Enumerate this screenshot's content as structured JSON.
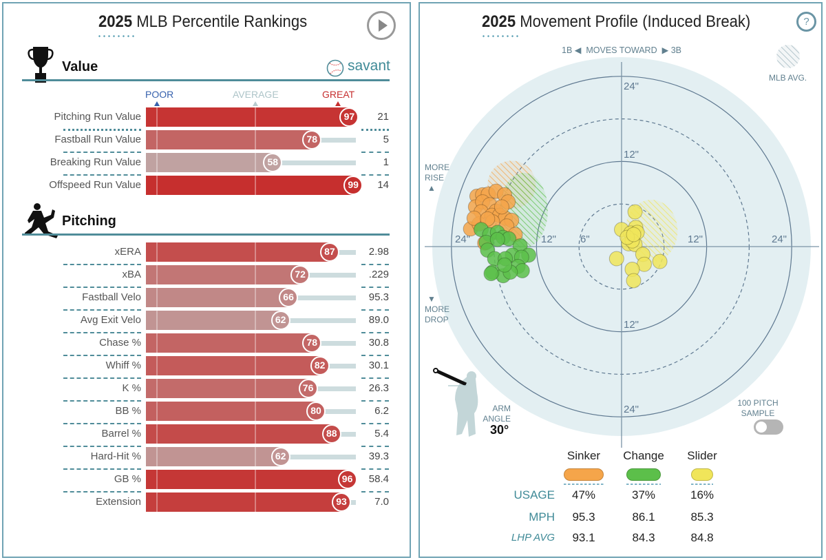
{
  "percentiles": {
    "title_year": "2025",
    "title_rest": "MLB Percentile Rankings",
    "play_icon": "play-circle-icon",
    "value_section": {
      "title": "Value",
      "icon": "trophy-icon"
    },
    "brand": {
      "label": "savant",
      "icon": "baseball-icon"
    },
    "scale_labels": {
      "poor": "POOR",
      "average": "AVERAGE",
      "great": "GREAT"
    },
    "colors": {
      "poor": "#3661ad",
      "average": "#bcc8c8",
      "great": "#c62f2f",
      "accent": "#4f8c99"
    },
    "value_rows": [
      {
        "label": "Pitching Run Value",
        "percentile": 97,
        "value": "21"
      },
      {
        "label": "Fastball Run Value",
        "percentile": 78,
        "value": "5"
      },
      {
        "label": "Breaking Run Value",
        "percentile": 58,
        "value": "1"
      },
      {
        "label": "Offspeed Run Value",
        "percentile": 99,
        "value": "14"
      }
    ],
    "pitching_section": {
      "title": "Pitching",
      "icon": "pitcher-icon"
    },
    "pitching_rows": [
      {
        "label": "xERA",
        "percentile": 87,
        "value": "2.98"
      },
      {
        "label": "xBA",
        "percentile": 72,
        "value": ".229"
      },
      {
        "label": "Fastball Velo",
        "percentile": 66,
        "value": "95.3"
      },
      {
        "label": "Avg Exit Velo",
        "percentile": 62,
        "value": "89.0"
      },
      {
        "label": "Chase %",
        "percentile": 78,
        "value": "30.8"
      },
      {
        "label": "Whiff %",
        "percentile": 82,
        "value": "30.1"
      },
      {
        "label": "K %",
        "percentile": 76,
        "value": "26.3"
      },
      {
        "label": "BB %",
        "percentile": 80,
        "value": "6.2"
      },
      {
        "label": "Barrel %",
        "percentile": 88,
        "value": "5.4"
      },
      {
        "label": "Hard-Hit %",
        "percentile": 62,
        "value": "39.3"
      },
      {
        "label": "GB %",
        "percentile": 96,
        "value": "58.4"
      },
      {
        "label": "Extension",
        "percentile": 93,
        "value": "7.0"
      }
    ]
  },
  "movement": {
    "title_year": "2025",
    "title_rest": "Movement Profile (Induced Break)",
    "help_icon": "question-circle-icon",
    "direction": {
      "left": "1B",
      "middle": "MOVES TOWARD",
      "right": "3B"
    },
    "mlb_avg_label": "MLB AVG.",
    "more_rise": [
      "MORE",
      "RISE"
    ],
    "more_drop": [
      "MORE",
      "DROP"
    ],
    "arm_angle": {
      "label1": "ARM",
      "label2": "ANGLE",
      "value": "30°"
    },
    "sample_toggle": {
      "label1": "100 PITCH",
      "label2": "SAMPLE",
      "on": false
    },
    "table": {
      "pitches": [
        {
          "name": "Sinker",
          "color": "#f5a54a",
          "usage": "47%",
          "mph": "95.3",
          "lhp_avg": "93.1"
        },
        {
          "name": "Change",
          "color": "#5cbf4a",
          "usage": "37%",
          "mph": "86.1",
          "lhp_avg": "84.3"
        },
        {
          "name": "Slider",
          "color": "#f0e55a",
          "usage": "16%",
          "mph": "85.3",
          "lhp_avg": "84.8"
        }
      ],
      "row_labels": {
        "usage": "USAGE",
        "mph": "MPH",
        "lhp_avg": "LHP AVG"
      }
    }
  },
  "chart_data": {
    "type": "scatter",
    "xlabel": "MOVES TOWARD",
    "units": "inches",
    "rings": [
      6,
      12,
      18,
      24
    ],
    "ring_labels": {
      "h_left": [
        "24\"",
        "12\"",
        "6\""
      ],
      "h_right": [
        "12\"",
        "24\""
      ],
      "v_top": [
        "24\"",
        "12\""
      ],
      "v_bottom": [
        "12\"",
        "24\""
      ]
    },
    "xlim": [
      -27,
      27
    ],
    "ylim": [
      -27,
      27
    ],
    "x_note": "negative = toward 1B (left), positive = toward 3B (right)",
    "series": [
      {
        "name": "Sinker",
        "color": "#f5a54a",
        "mlb_avg": {
          "x": -15.5,
          "y": 8.7,
          "rx": 3.4,
          "ry": 3.4
        },
        "points": [
          [
            -20.4,
            7.1
          ],
          [
            -19.6,
            7.3
          ],
          [
            -18.8,
            7.4
          ],
          [
            -17.7,
            7.8
          ],
          [
            -16.5,
            7.3
          ],
          [
            -16.0,
            6.3
          ],
          [
            -20.6,
            5.6
          ],
          [
            -19.6,
            6.3
          ],
          [
            -18.6,
            5.9
          ],
          [
            -17.7,
            5.0
          ],
          [
            -19.8,
            4.9
          ],
          [
            -18.3,
            4.4
          ],
          [
            -17.2,
            4.4
          ],
          [
            -16.4,
            4.0
          ],
          [
            -15.5,
            3.7
          ],
          [
            -21.3,
            2.5
          ],
          [
            -20.1,
            3.2
          ],
          [
            -18.2,
            3.5
          ],
          [
            -16.2,
            2.9
          ],
          [
            -15.0,
            1.7
          ],
          [
            -19.3,
            0.5
          ],
          [
            -20.8,
            4.0
          ],
          [
            -16.9,
            5.6
          ],
          [
            -18.9,
            3.9
          ]
        ]
      },
      {
        "name": "Change",
        "color": "#5cbf4a",
        "mlb_avg": {
          "x": -13.8,
          "y": 5.1,
          "rx": 3.4,
          "ry": 5.3
        },
        "points": [
          [
            -19.8,
            2.4
          ],
          [
            -18.6,
            1.7
          ],
          [
            -17.5,
            2.0
          ],
          [
            -16.7,
            1.3
          ],
          [
            -15.9,
            1.1
          ],
          [
            -19.1,
            0.6
          ],
          [
            -17.5,
            1.0
          ],
          [
            -18.9,
            -0.5
          ],
          [
            -14.3,
            0.1
          ],
          [
            -13.1,
            -1.2
          ],
          [
            -15.4,
            -1.2
          ],
          [
            -14.1,
            -1.5
          ],
          [
            -17.9,
            -1.7
          ],
          [
            -16.4,
            -1.7
          ],
          [
            -14.6,
            -2.8
          ],
          [
            -14.0,
            -3.4
          ],
          [
            -18.2,
            -3.6
          ],
          [
            -16.7,
            -4.1
          ],
          [
            -15.7,
            -3.6
          ],
          [
            -16.5,
            -2.6
          ],
          [
            -18.4,
            -3.8
          ]
        ]
      },
      {
        "name": "Slider",
        "color": "#f0e55a",
        "mlb_avg": {
          "x": 4.2,
          "y": 2.2,
          "rx": 3.7,
          "ry": 4.4
        },
        "points": [
          [
            1.9,
            4.9
          ],
          [
            0.0,
            2.4
          ],
          [
            2.0,
            2.7
          ],
          [
            1.3,
            1.9
          ],
          [
            2.2,
            2.0
          ],
          [
            1.0,
            0.4
          ],
          [
            1.9,
            0.3
          ],
          [
            1.5,
            0.8
          ],
          [
            3.0,
            -1.1
          ],
          [
            -0.7,
            -1.7
          ],
          [
            3.2,
            -2.5
          ],
          [
            5.4,
            -2.1
          ],
          [
            1.5,
            -3.2
          ],
          [
            1.7,
            -4.8
          ],
          [
            0.8,
            1.3
          ],
          [
            1.7,
            1.7
          ]
        ]
      }
    ]
  }
}
